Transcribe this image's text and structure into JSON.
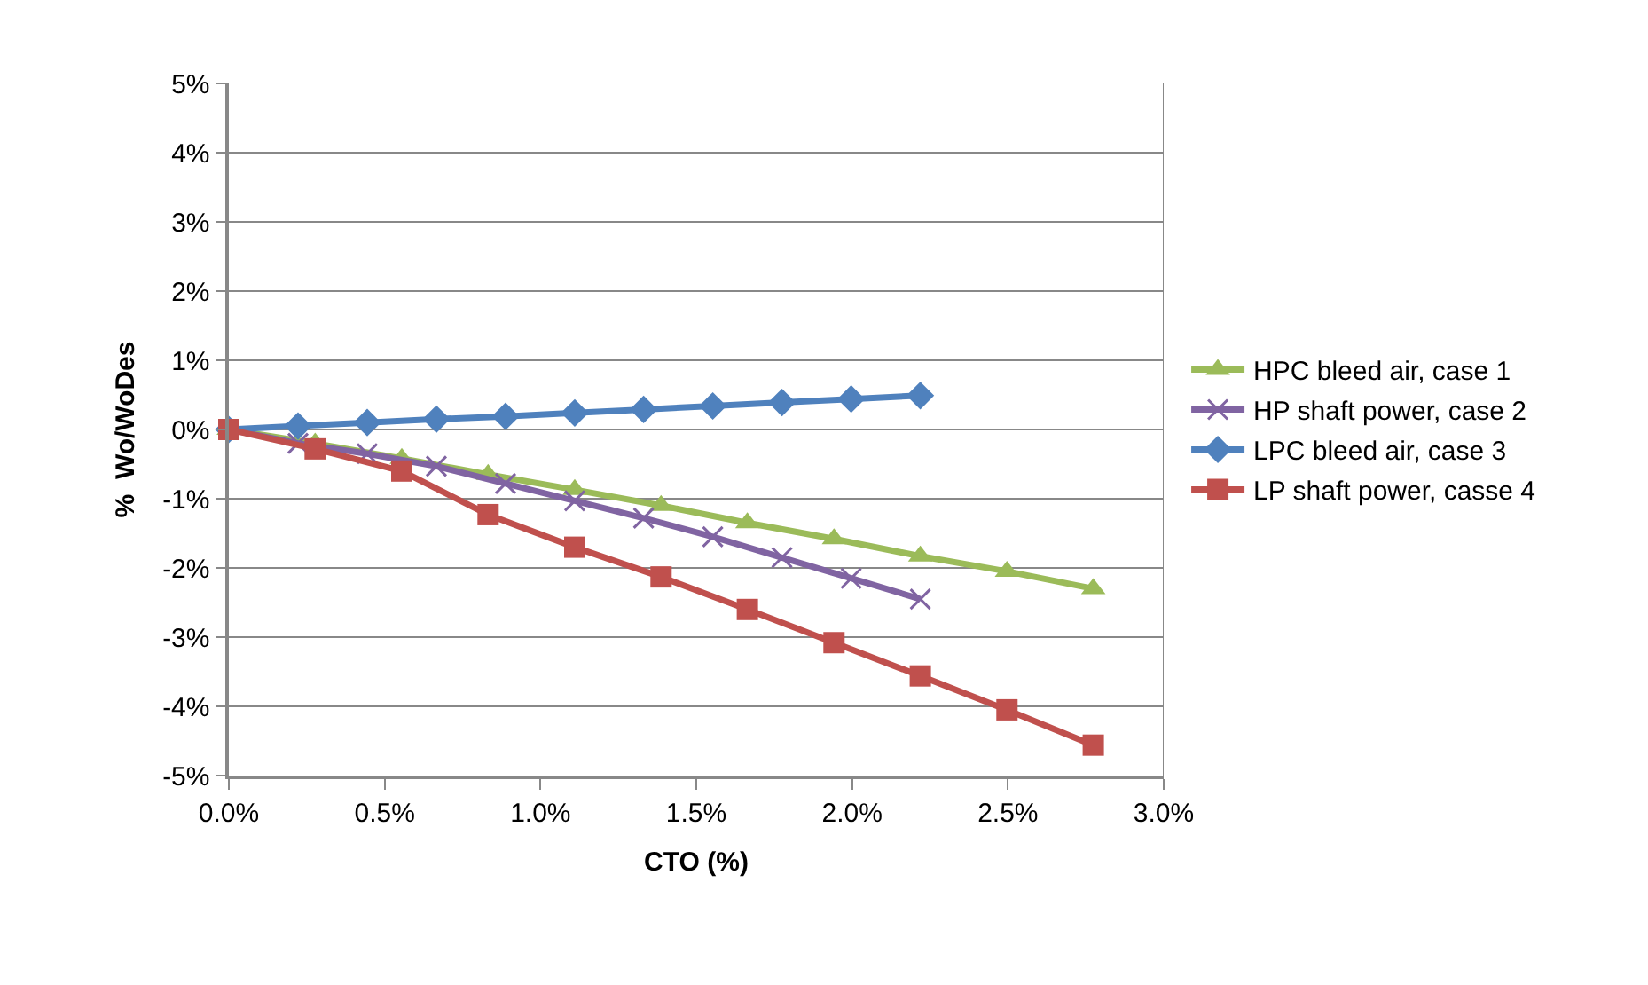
{
  "chart_data": {
    "type": "line",
    "xlabel": "CTO (%)",
    "ylabel": "%  Wo/WoDes",
    "xlim": [
      0,
      3
    ],
    "xticks": [
      {
        "value": 0,
        "label": "0.0%"
      },
      {
        "value": 0.5,
        "label": "0.5%"
      },
      {
        "value": 1,
        "label": "1.0%"
      },
      {
        "value": 1.5,
        "label": "1.5%"
      },
      {
        "value": 2,
        "label": "2.0%"
      },
      {
        "value": 2.5,
        "label": "2.5%"
      },
      {
        "value": 3,
        "label": "3.0%"
      }
    ],
    "ylim": [
      -5,
      5
    ],
    "yticks": [
      {
        "value": -5,
        "label": "-5%"
      },
      {
        "value": -4,
        "label": "-4%"
      },
      {
        "value": -3,
        "label": "-3%"
      },
      {
        "value": -2,
        "label": "-2%"
      },
      {
        "value": -1,
        "label": "-1%"
      },
      {
        "value": 0,
        "label": "0%"
      },
      {
        "value": 1,
        "label": "1%"
      },
      {
        "value": 2,
        "label": "2%"
      },
      {
        "value": 3,
        "label": "3%"
      },
      {
        "value": 4,
        "label": "4%"
      },
      {
        "value": 5,
        "label": "5%"
      }
    ],
    "grid": "y",
    "legend": "right",
    "series": [
      {
        "name": "HPC bleed air, case 1",
        "color": "#9bbb59",
        "marker": "triangle",
        "x": [
          0,
          0.277,
          0.555,
          0.832,
          1.11,
          1.387,
          1.664,
          1.942,
          2.219,
          2.497,
          2.774
        ],
        "values": [
          0,
          -0.2,
          -0.42,
          -0.65,
          -0.87,
          -1.1,
          -1.35,
          -1.58,
          -1.83,
          -2.05,
          -2.3
        ]
      },
      {
        "name": "HP shaft power, case 2",
        "color": "#8064a2",
        "marker": "cross",
        "x": [
          0,
          0.222,
          0.444,
          0.666,
          0.888,
          1.11,
          1.331,
          1.553,
          1.775,
          1.997,
          2.219
        ],
        "values": [
          0,
          -0.2,
          -0.35,
          -0.53,
          -0.78,
          -1.03,
          -1.28,
          -1.55,
          -1.85,
          -2.15,
          -2.45
        ]
      },
      {
        "name": "LPC bleed air, case 3",
        "color": "#4f81bd",
        "marker": "diamond",
        "x": [
          0,
          0.222,
          0.444,
          0.666,
          0.888,
          1.11,
          1.331,
          1.553,
          1.775,
          1.997,
          2.219
        ],
        "values": [
          0,
          0.05,
          0.1,
          0.15,
          0.19,
          0.24,
          0.29,
          0.34,
          0.39,
          0.44,
          0.49
        ]
      },
      {
        "name": "LP shaft power, casse 4",
        "color": "#c0504d",
        "marker": "square",
        "x": [
          0,
          0.277,
          0.555,
          0.832,
          1.11,
          1.387,
          1.664,
          1.942,
          2.219,
          2.497,
          2.774
        ],
        "values": [
          0,
          -0.28,
          -0.6,
          -1.23,
          -1.7,
          -2.13,
          -2.6,
          -3.08,
          -3.56,
          -4.05,
          -4.56
        ]
      }
    ]
  }
}
